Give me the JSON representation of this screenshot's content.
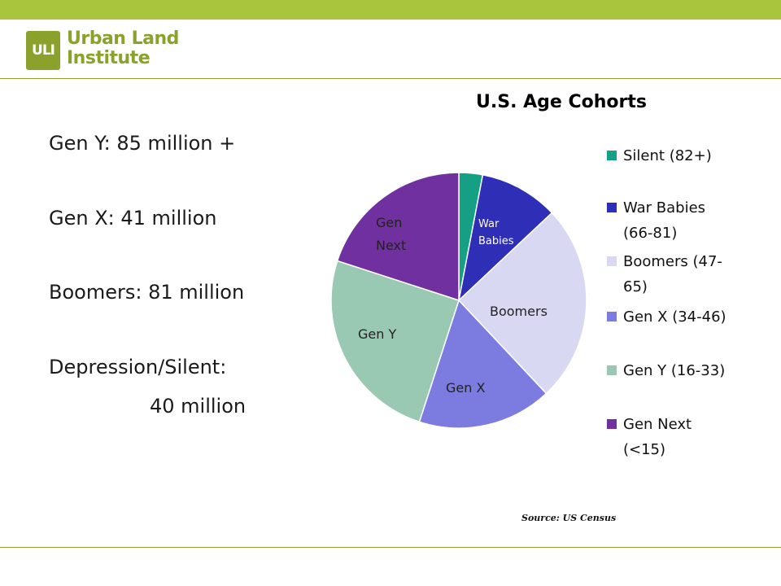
{
  "colors": {
    "topbar": "#a9c43d",
    "rule": "#8aa12b",
    "logo": "#8aa12b"
  },
  "logo": {
    "mark": "ULI",
    "line1": "Urban Land",
    "line2": "Institute"
  },
  "stats": [
    {
      "text": "Gen Y:    85 million +"
    },
    {
      "text": "Gen X:   41 million"
    },
    {
      "text": "Boomers:  81 million"
    },
    {
      "text": "Depression/Silent:"
    },
    {
      "text": "40 million"
    }
  ],
  "source": "Source:  US Census",
  "chart_data": {
    "type": "pie",
    "title": "U.S. Age Cohorts",
    "legend_position": "right",
    "slices": [
      {
        "label": "Silent  (82+)",
        "pie_label": "",
        "value": 3,
        "color": "#16a083"
      },
      {
        "label": "War Babies (66-81)",
        "pie_label": "War Babies",
        "value": 10,
        "color": "#2e2eb6"
      },
      {
        "label": "Boomers (47-65)",
        "pie_label": "Boomers",
        "value": 25,
        "color": "#d8d8f2"
      },
      {
        "label": "Gen X (34-46)",
        "pie_label": "Gen X",
        "value": 17,
        "color": "#7b7be0"
      },
      {
        "label": "Gen Y (16-33)",
        "pie_label": "Gen Y",
        "value": 25,
        "color": "#99c8b3"
      },
      {
        "label": "Gen Next (<15)",
        "pie_label": "Gen Next",
        "value": 20,
        "color": "#7030a0"
      }
    ]
  }
}
